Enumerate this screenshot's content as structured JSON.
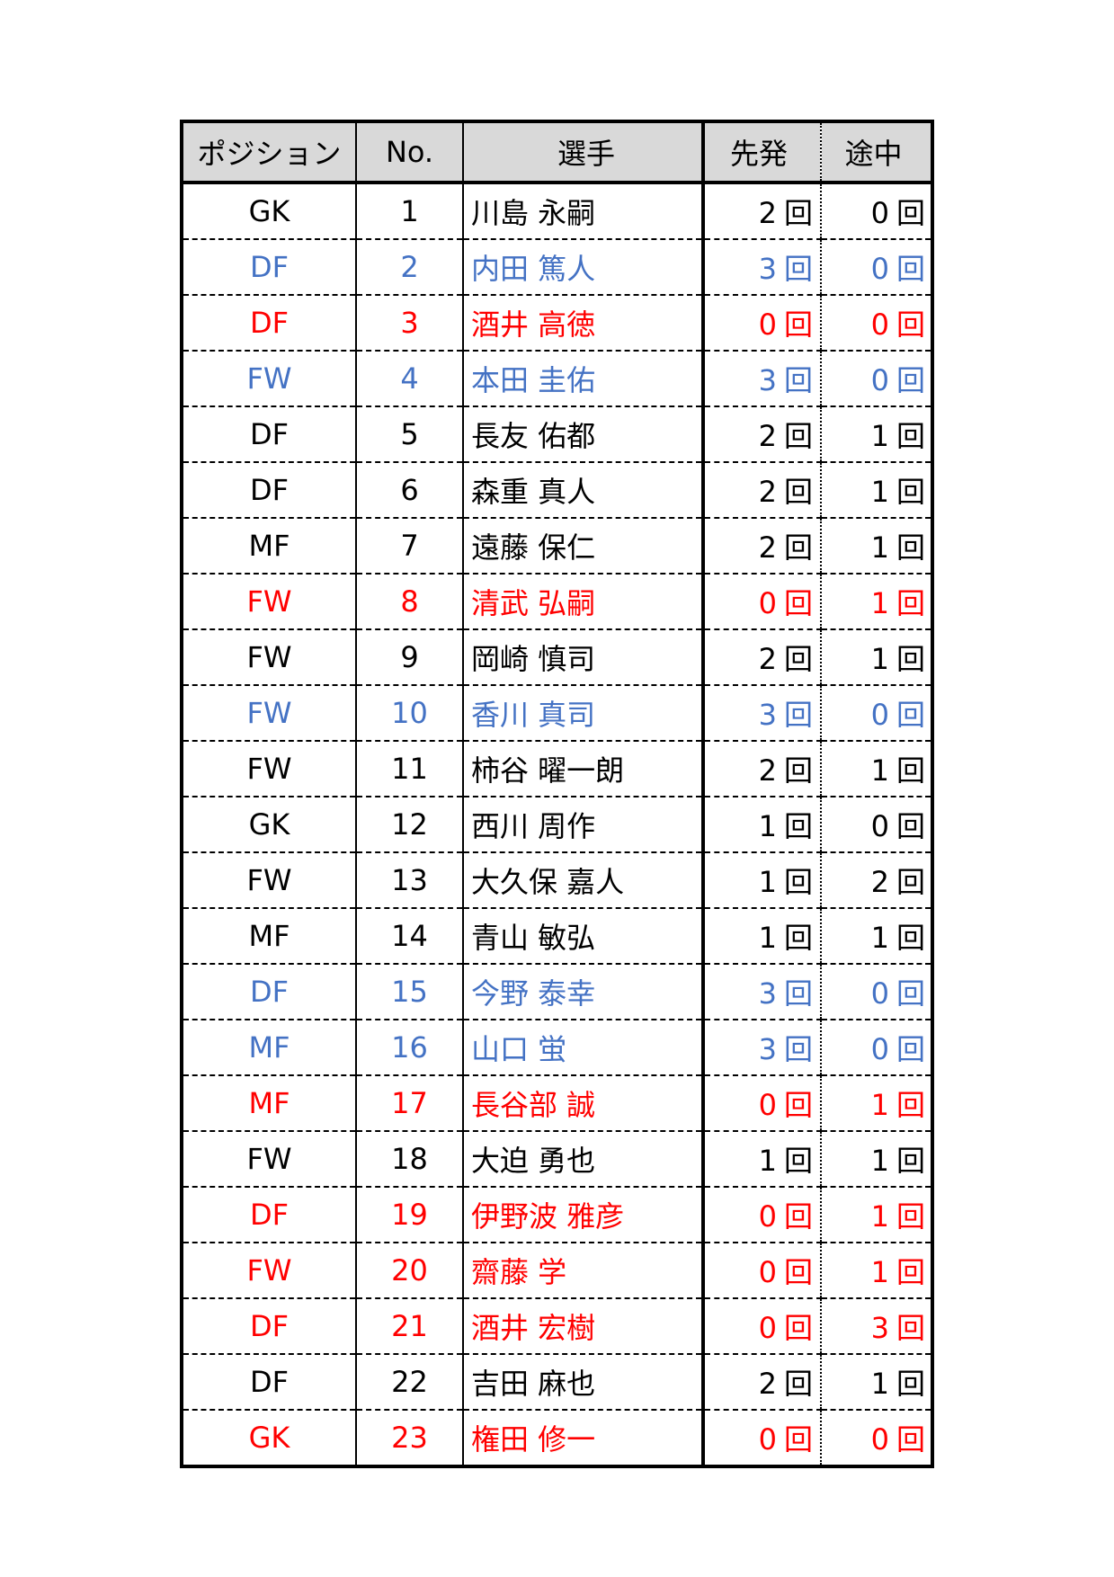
{
  "colors": {
    "black": "#000000",
    "blue": "#4472c4",
    "red": "#ff0000",
    "header_bg": "#d9d9d9"
  },
  "headers": {
    "position": "ポジション",
    "number": "No.",
    "player": "選手",
    "start": "先発",
    "sub": "途中"
  },
  "unit": "回",
  "rows": [
    {
      "pos": "GK",
      "no": "1",
      "name": "川島 永嗣",
      "start": "2",
      "sub": "0",
      "color": "black"
    },
    {
      "pos": "DF",
      "no": "2",
      "name": "内田 篤人",
      "start": "3",
      "sub": "0",
      "color": "blue"
    },
    {
      "pos": "DF",
      "no": "3",
      "name": "酒井 高徳",
      "start": "0",
      "sub": "0",
      "color": "red"
    },
    {
      "pos": "FW",
      "no": "4",
      "name": "本田 圭佑",
      "start": "3",
      "sub": "0",
      "color": "blue"
    },
    {
      "pos": "DF",
      "no": "5",
      "name": "長友 佑都",
      "start": "2",
      "sub": "1",
      "color": "black"
    },
    {
      "pos": "DF",
      "no": "6",
      "name": "森重 真人",
      "start": "2",
      "sub": "1",
      "color": "black"
    },
    {
      "pos": "MF",
      "no": "7",
      "name": "遠藤 保仁",
      "start": "2",
      "sub": "1",
      "color": "black"
    },
    {
      "pos": "FW",
      "no": "8",
      "name": "清武 弘嗣",
      "start": "0",
      "sub": "1",
      "color": "red"
    },
    {
      "pos": "FW",
      "no": "9",
      "name": "岡崎 慎司",
      "start": "2",
      "sub": "1",
      "color": "black"
    },
    {
      "pos": "FW",
      "no": "10",
      "name": "香川 真司",
      "start": "3",
      "sub": "0",
      "color": "blue"
    },
    {
      "pos": "FW",
      "no": "11",
      "name": "柿谷 曜一朗",
      "start": "2",
      "sub": "1",
      "color": "black"
    },
    {
      "pos": "GK",
      "no": "12",
      "name": "西川 周作",
      "start": "1",
      "sub": "0",
      "color": "black"
    },
    {
      "pos": "FW",
      "no": "13",
      "name": "大久保 嘉人",
      "start": "1",
      "sub": "2",
      "color": "black"
    },
    {
      "pos": "MF",
      "no": "14",
      "name": "青山 敏弘",
      "start": "1",
      "sub": "1",
      "color": "black"
    },
    {
      "pos": "DF",
      "no": "15",
      "name": "今野 泰幸",
      "start": "3",
      "sub": "0",
      "color": "blue"
    },
    {
      "pos": "MF",
      "no": "16",
      "name": "山口 蛍",
      "start": "3",
      "sub": "0",
      "color": "blue"
    },
    {
      "pos": "MF",
      "no": "17",
      "name": "長谷部 誠",
      "start": "0",
      "sub": "1",
      "color": "red"
    },
    {
      "pos": "FW",
      "no": "18",
      "name": "大迫 勇也",
      "start": "1",
      "sub": "1",
      "color": "black"
    },
    {
      "pos": "DF",
      "no": "19",
      "name": "伊野波 雅彦",
      "start": "0",
      "sub": "1",
      "color": "red"
    },
    {
      "pos": "FW",
      "no": "20",
      "name": "齋藤 学",
      "start": "0",
      "sub": "1",
      "color": "red"
    },
    {
      "pos": "DF",
      "no": "21",
      "name": "酒井 宏樹",
      "start": "0",
      "sub": "3",
      "color": "red"
    },
    {
      "pos": "DF",
      "no": "22",
      "name": "吉田 麻也",
      "start": "2",
      "sub": "1",
      "color": "black"
    },
    {
      "pos": "GK",
      "no": "23",
      "name": "権田 修一",
      "start": "0",
      "sub": "0",
      "color": "red"
    }
  ]
}
